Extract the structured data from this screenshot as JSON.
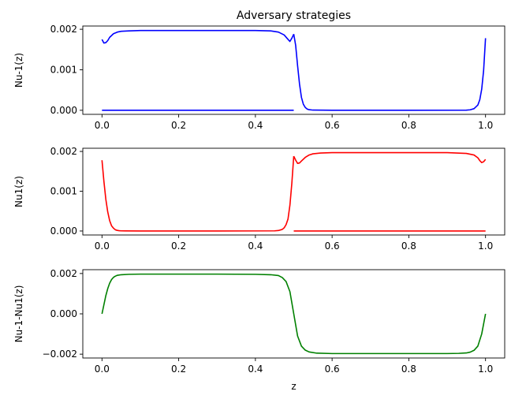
{
  "chart_data": [
    {
      "type": "line",
      "title": "Adversary strategies",
      "xlabel": "",
      "ylabel": "Nu-1(z)",
      "xlim": [
        -0.05,
        1.05
      ],
      "ylim": [
        -0.0001,
        0.00208
      ],
      "xticks": [
        0.0,
        0.2,
        0.4,
        0.6,
        0.8,
        1.0
      ],
      "xtick_labels": [
        "0.0",
        "0.2",
        "0.4",
        "0.6",
        "0.8",
        "1.0"
      ],
      "yticks": [
        0.0,
        0.001,
        0.002
      ],
      "ytick_labels": [
        "0.000",
        "0.001",
        "0.002"
      ],
      "grid": false,
      "color": "#0000ff",
      "series": [
        {
          "segments": [
            {
              "x": [
                0.0,
                0.005,
                0.01,
                0.015,
                0.02,
                0.03,
                0.04,
                0.05,
                0.07,
                0.1,
                0.2,
                0.3,
                0.4,
                0.44,
                0.46,
                0.475,
                0.485,
                0.49,
                0.495,
                0.5
              ],
              "y": [
                0.00175,
                0.00166,
                0.00167,
                0.00172,
                0.0018,
                0.00189,
                0.00193,
                0.00195,
                0.00196,
                0.00197,
                0.00197,
                0.00197,
                0.00197,
                0.00196,
                0.00193,
                0.00186,
                0.00175,
                0.0017,
                0.00178,
                0.00188
              ]
            },
            {
              "x": [
                0.5,
                0.505,
                0.51,
                0.515,
                0.52,
                0.525,
                0.53,
                0.535,
                0.54,
                0.55,
                0.6,
                0.8,
                0.95,
                0.96,
                0.97,
                0.98,
                0.985,
                0.99,
                0.995,
                1.0
              ],
              "y": [
                0.00188,
                0.0016,
                0.0011,
                0.00065,
                0.00032,
                0.00015,
                7e-05,
                3e-05,
                1.5e-05,
                5e-06,
                0.0,
                0.0,
                4e-06,
                1.2e-05,
                4e-05,
                0.00013,
                0.00026,
                0.00052,
                0.00098,
                0.00178
              ]
            },
            {
              "x": [
                0.0,
                0.5
              ],
              "y": [
                0.0,
                0.0
              ]
            }
          ]
        }
      ]
    },
    {
      "type": "line",
      "title": "",
      "xlabel": "",
      "ylabel": "Nu1(z)",
      "xlim": [
        -0.05,
        1.05
      ],
      "ylim": [
        -0.0001,
        0.00208
      ],
      "xticks": [
        0.0,
        0.2,
        0.4,
        0.6,
        0.8,
        1.0
      ],
      "xtick_labels": [
        "0.0",
        "0.2",
        "0.4",
        "0.6",
        "0.8",
        "1.0"
      ],
      "yticks": [
        0.0,
        0.001,
        0.002
      ],
      "ytick_labels": [
        "0.000",
        "0.001",
        "0.002"
      ],
      "grid": false,
      "color": "#ff0000",
      "series": [
        {
          "segments": [
            {
              "x": [
                0.0,
                0.005,
                0.01,
                0.015,
                0.02,
                0.025,
                0.03,
                0.035,
                0.04,
                0.045,
                0.05,
                0.06,
                0.1,
                0.3,
                0.45,
                0.46,
                0.47,
                0.475,
                0.48,
                0.485,
                0.49,
                0.495,
                0.5
              ],
              "y": [
                0.00178,
                0.00125,
                0.0008,
                0.00048,
                0.00026,
                0.00013,
                7e-05,
                3e-05,
                1.5e-05,
                7e-06,
                4e-06,
                2e-06,
                0.0,
                0.0,
                4e-06,
                1.2e-05,
                4e-05,
                8e-05,
                0.00016,
                0.0003,
                0.00065,
                0.0012,
                0.00188
              ]
            },
            {
              "x": [
                0.5,
                0.505,
                0.51,
                0.515,
                0.52,
                0.53,
                0.54,
                0.55,
                0.57,
                0.6,
                0.8,
                0.9,
                0.95,
                0.97,
                0.98,
                0.985,
                0.99,
                0.995,
                1.0
              ],
              "y": [
                0.00188,
                0.00178,
                0.0017,
                0.00171,
                0.00176,
                0.00185,
                0.00191,
                0.00194,
                0.00196,
                0.00197,
                0.00197,
                0.00197,
                0.00195,
                0.00191,
                0.00184,
                0.00177,
                0.00172,
                0.00174,
                0.0018
              ]
            },
            {
              "x": [
                0.5,
                1.0
              ],
              "y": [
                0.0,
                0.0
              ]
            }
          ]
        }
      ]
    },
    {
      "type": "line",
      "title": "",
      "xlabel": "z",
      "ylabel": "Nu-1-Nu1(z)",
      "xlim": [
        -0.05,
        1.05
      ],
      "ylim": [
        -0.00219,
        0.00219
      ],
      "xticks": [
        0.0,
        0.2,
        0.4,
        0.6,
        0.8,
        1.0
      ],
      "xtick_labels": [
        "0.0",
        "0.2",
        "0.4",
        "0.6",
        "0.8",
        "1.0"
      ],
      "yticks": [
        -0.002,
        0.0,
        0.002
      ],
      "ytick_labels": [
        "−0.002",
        "0.000",
        "0.002"
      ],
      "grid": false,
      "color": "#008000",
      "series": [
        {
          "segments": [
            {
              "x": [
                0.0,
                0.005,
                0.01,
                0.015,
                0.02,
                0.025,
                0.03,
                0.035,
                0.04,
                0.05,
                0.07,
                0.1,
                0.2,
                0.3,
                0.4,
                0.44,
                0.46,
                0.47,
                0.48,
                0.49,
                0.5,
                0.51,
                0.52,
                0.53,
                0.54,
                0.56,
                0.6,
                0.7,
                0.8,
                0.9,
                0.93,
                0.95,
                0.96,
                0.97,
                0.98,
                0.99,
                1.0
              ],
              "y": [
                0.0,
                0.00045,
                0.0009,
                0.00125,
                0.00152,
                0.0017,
                0.00181,
                0.00187,
                0.00191,
                0.00194,
                0.00196,
                0.00197,
                0.00197,
                0.00197,
                0.00196,
                0.00194,
                0.0019,
                0.0018,
                0.0016,
                0.0011,
                0.0,
                -0.0011,
                -0.0016,
                -0.0018,
                -0.00189,
                -0.00195,
                -0.00197,
                -0.00197,
                -0.00197,
                -0.00197,
                -0.00196,
                -0.00194,
                -0.0019,
                -0.00181,
                -0.0016,
                -0.001,
                0.0
              ]
            }
          ]
        }
      ]
    }
  ]
}
